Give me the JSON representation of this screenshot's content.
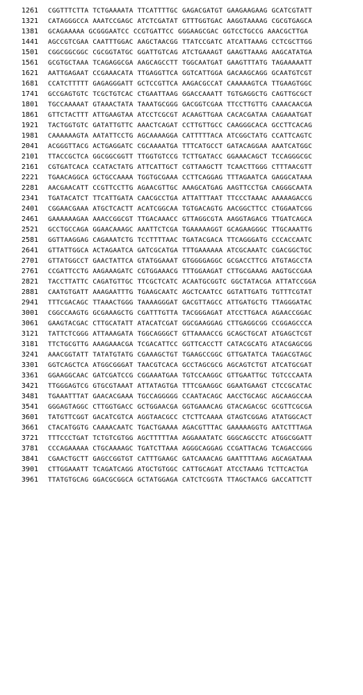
{
  "sequence": {
    "rows": [
      {
        "pos": "1261",
        "blocks": [
          "CGGTTTCTTA",
          "TCTGAAAATA",
          "TTCATTTTGC",
          "GAGACGATGT",
          "GAAGAAGAAG",
          "GCATCGTATT"
        ]
      },
      {
        "pos": "1321",
        "blocks": [
          "CATAGGGCCA",
          "AAATCCGAGC",
          "ATCTCGATAT",
          "GTTTGGTGAC",
          "AAGGTAAAAG",
          "CGCGTGAGCA"
        ]
      },
      {
        "pos": "1381",
        "blocks": [
          "GCAGAAAAA",
          "GCGGGAATCC",
          "CCGTGATTCC",
          "GGGAAGCGAC",
          "GGTCCTGCCG",
          "AAACGCTTGA"
        ]
      },
      {
        "pos": "1441",
        "blocks": [
          "AGCCGTCGAA",
          "CAATTTGGAC",
          "AAGCTAACGG",
          "TTATCCGATC",
          "ATCATTAAAG",
          "CCTCGCTTGG"
        ]
      },
      {
        "pos": "1501",
        "blocks": [
          "CGGCGGCGGC",
          "CGCGGTATGC",
          "GGATTGTCAG",
          "ATCTGAAAGT",
          "GAAGTTAAAG",
          "AAGCATATGA"
        ]
      },
      {
        "pos": "1561",
        "blocks": [
          "GCGTGCTAAA",
          "TCAGAGGCGA",
          "AAGCAGCCTT",
          "TGGCAATGAT",
          "GAAGTTTATG",
          "TAGAAAAATT"
        ]
      },
      {
        "pos": "1621",
        "blocks": [
          "AATTGAGAAT",
          "CCGAAACATA",
          "TTGAGGTTCA",
          "GGTCATTGGA",
          "GACAAGCAGG",
          "GCAATGTCGT"
        ]
      },
      {
        "pos": "1681",
        "blocks": [
          "CCATCTTTTT",
          "GAGAGGGATT",
          "GCTCCGTTCA",
          "AAGACGCCAT",
          "CAAAAAGTCA",
          "TTGAAGTGGC"
        ]
      },
      {
        "pos": "1741",
        "blocks": [
          "GCCGAGTGTC",
          "TCGCTGTCAC",
          "CTGAATTAAG",
          "GGACCAAATT",
          "TGTGAGGCTG",
          "CAGTTGCGCT"
        ]
      },
      {
        "pos": "1801",
        "blocks": [
          "TGCCAAAAAT",
          "GTAAACTATA",
          "TAAATGCGGG",
          "GACGGTCGAA",
          "TTCCTTGTTG",
          "CAAACAACGA"
        ]
      },
      {
        "pos": "1861",
        "blocks": [
          "GTTCTACTTT",
          "ATTGAAGTAA",
          "ATCCTCGCGT",
          "ACAAGTTGAA",
          "CACACGATAA",
          "CAGAAATGAT"
        ]
      },
      {
        "pos": "1921",
        "blocks": [
          "TACTGGTGTC",
          "GATATTGTTC",
          "AAACTCAGAT",
          "CCTTGTTGCC",
          "CAAGGGCACA",
          "GCCTTCACAG"
        ]
      },
      {
        "pos": "1981",
        "blocks": [
          "CAAAAAAGTA",
          "AATATTCCTG",
          "AGCAAAAGGA",
          "CATTTTTACA",
          "ATCGGCTATG",
          "CCATTCAGTC"
        ]
      },
      {
        "pos": "2041",
        "blocks": [
          "ACGGGTTACG",
          "ACTGAGGATC",
          "CGCAAAATGA",
          "TTTCATGCCT",
          "GATACAGGAA",
          "AAATCATGGC"
        ]
      },
      {
        "pos": "2101",
        "blocks": [
          "TTACCGCTCA",
          "GGCGGCGGTT",
          "TTGGTGTCCG",
          "TCTTGATACC",
          "GGAAACAGCT",
          "TCCAGGGCGC"
        ]
      },
      {
        "pos": "2161",
        "blocks": [
          "CGTGATCACA",
          "CCATACTATG",
          "ATTCATTGCT",
          "CGTTAAGCTT",
          "TCAACTTGGG",
          "CTTTAACGTT"
        ]
      },
      {
        "pos": "2221",
        "blocks": [
          "TGAACAGGCA",
          "GCTGCCAAAA",
          "TGGTGCGAAA",
          "CCTTCAGGAG",
          "TTTAGAATCA",
          "GAGGCATAAA"
        ]
      },
      {
        "pos": "2281",
        "blocks": [
          "AACGAACATT",
          "CCGTTCCTTG",
          "AGAACGTTGC",
          "AAAGCATGAG",
          "AAGTTCCTGA",
          "CAGGGCAATA"
        ]
      },
      {
        "pos": "2341",
        "blocks": [
          "TGATACATCT",
          "TTCATTGATA",
          "CAACGCCTGA",
          "ATTATTTAAT",
          "TTCCCTAAAC",
          "AAAAAGACCG"
        ]
      },
      {
        "pos": "2401",
        "blocks": [
          "CGGAACGAAA",
          "ATGCTCACTT",
          "ACATCGGCAA",
          "TGTGACAGTG",
          "AACGGCTTCC",
          "CTGGAATCGG"
        ]
      },
      {
        "pos": "2461",
        "blocks": [
          "GAAAAAAGAA",
          "AAACCGGCGT",
          "TTGACAAACC",
          "GTTAGGCGTA",
          "AAGGTAGACG",
          "TTGATCAGCA"
        ]
      },
      {
        "pos": "2521",
        "blocks": [
          "GCCTGCCAGA",
          "GGAACAAAGC",
          "AAATTCTCGA",
          "TGAAAAAGGT",
          "GCAGAAGGGC",
          "TTGCAAATTG"
        ]
      },
      {
        "pos": "2581",
        "blocks": [
          "GGTTAAGGAG",
          "CAGAAATCTG",
          "TCCTTTTAAC",
          "TGATACGACA",
          "TTCAGGGATG",
          "CCCACCAATC"
        ]
      },
      {
        "pos": "2641",
        "blocks": [
          "GTTATTGGCA",
          "ACTAGAATCA",
          "GATCGCATGA",
          "TTTGAAAAAA",
          "ATCGCAAATC",
          "CGACGGCTGC"
        ]
      },
      {
        "pos": "2701",
        "blocks": [
          "GTTATGGCCT",
          "GAACTATTCA",
          "GTATGGAAAT",
          "GTGGGGAGGC",
          "GCGACCTTCG",
          "ATGTAGCCTA"
        ]
      },
      {
        "pos": "2761",
        "blocks": [
          "CCGATTCCTG",
          "AAGAAAGATC",
          "CGTGGAAACG",
          "TTTGGAAGAT",
          "CTTGCGAAAG",
          "AAGTGCCGAA"
        ]
      },
      {
        "pos": "2821",
        "blocks": [
          "TACCTTATTC",
          "CAGATGTTGC",
          "TTCGCTCATC",
          "ACAATGCGGTC",
          "GGCTATACGA",
          "ATTATCCGGA"
        ]
      },
      {
        "pos": "2881",
        "blocks": [
          "CAATGTGATT",
          "AAAGAATTTG",
          "TGAAGCAATC",
          "AGCTCAATCC",
          "GGTATTGATG",
          "TGTTTCGTAT"
        ]
      },
      {
        "pos": "2941",
        "blocks": [
          "TTTCGACAGC",
          "TTAAACTGGG",
          "TAAAAGGGAT",
          "GACGTTAGCC",
          "ATTGATGCTG",
          "TTAGGGATAC"
        ]
      },
      {
        "pos": "3001",
        "blocks": [
          "CGGCCAAGTG",
          "GCGAAAGCTG",
          "CGATTTGTTA",
          "TACGGGAGAT",
          "ATCCTTGACA",
          "AGAACCGGAC"
        ]
      },
      {
        "pos": "3061",
        "blocks": [
          "GAAGTACGAC",
          "CTTGCATATT",
          "ATACATCGAT",
          "GGCGAAGGAG",
          "CTTGAGGCGG",
          "CCGGAGCCCA"
        ]
      },
      {
        "pos": "3121",
        "blocks": [
          "TATTCTCGGG",
          "ATTAAAGATA",
          "TGGCAGGGCT",
          "GTTAAAACCG",
          "GCAGCTGCAT",
          "ATGAGCTCGT"
        ]
      },
      {
        "pos": "3181",
        "blocks": [
          "TTCTGCGTTG",
          "AAAGAAACGA",
          "TCGACATTCC",
          "GGTTCACCTT",
          "CATACGCATG",
          "ATACGAGCGG"
        ]
      },
      {
        "pos": "3241",
        "blocks": [
          "AAACGGTATT",
          "TATATGTATG",
          "CGAAAGCTGT",
          "TGAAGCCGGC",
          "GTTGATATCA",
          "TAGACGTAGC"
        ]
      },
      {
        "pos": "3301",
        "blocks": [
          "GGTCAGCTCA",
          "ATGGCGGGAT",
          "TAACGTCACA",
          "GCCTAGCGCG",
          "AGCAGTCTGT",
          "ATCATGCGAT"
        ]
      },
      {
        "pos": "3361",
        "blocks": [
          "GGAAGGCAAC",
          "GATCGATCCG",
          "CGGAAATGAA",
          "TGTCCAAGGC",
          "GTTGAATTGC",
          "TGTCCCAATA"
        ]
      },
      {
        "pos": "3421",
        "blocks": [
          "TTGGGAGTCG",
          "GTGCGTAAAT",
          "ATTATAGTGA",
          "TTTCGAAGGC",
          "GGAATGAAGT",
          "CTCCGCATAC"
        ]
      },
      {
        "pos": "3481",
        "blocks": [
          "TGAAATTTAT",
          "GAACACGAAA",
          "TGCCAGGGGG",
          "CCAATACAGC",
          "AACCTGCAGC",
          "AGCAAGCCAA"
        ]
      },
      {
        "pos": "3541",
        "blocks": [
          "GGGAGTAGGC",
          "CTTGGTGACC",
          "GCTGGAACGA",
          "GGTGAAACAG",
          "GTACAGACGC",
          "GCGTTCGCGA"
        ]
      },
      {
        "pos": "3601",
        "blocks": [
          "TATGTTCGGT",
          "GACATCGTCA",
          "AGGTAACGCC",
          "CTCTTCAAAA",
          "GTAGTCGGAG",
          "ATATGGCACT"
        ]
      },
      {
        "pos": "3661",
        "blocks": [
          "CTACATGGTG",
          "CAAAACAATC",
          "TGACTGAAAA",
          "AGACGTTTAC",
          "GAAAAAGGTG",
          "AATCTTTAGA"
        ]
      },
      {
        "pos": "3721",
        "blocks": [
          "TTTCCCTGAT",
          "TCTGTCGTGG",
          "AGCTTTTTAA",
          "AGGAAATATC",
          "GGGCAGCCTC",
          "ATGGCGGATT"
        ]
      },
      {
        "pos": "3781",
        "blocks": [
          "CCCAGAAAAA",
          "CTGCAAAAGC",
          "TGATCTTAAA",
          "AGGGCAGGAG",
          "CCGATTACAG",
          "TCAGACCGGG"
        ]
      },
      {
        "pos": "3841",
        "blocks": [
          "CGAACTGCTT",
          "GAGCCGGTGT",
          "CATTTGAAGC",
          "GATCAAACAG",
          "GAATTTTAAG",
          "AGCAGATAAA"
        ]
      },
      {
        "pos": "3901",
        "blocks": [
          "CTTGGAAATT",
          "TCAGATCAGG",
          "ATGCTGTGGC",
          "CATTGCAGAT",
          "ATCCTAAAG",
          "TCTTCACTGA"
        ]
      },
      {
        "pos": "3961",
        "blocks": [
          "TTATGTGCAG",
          "GGACGCGGCA",
          "GCTATGGAGA",
          "CATCTCGGTA",
          "TTAGCTAACG",
          "GACCATTCTT"
        ]
      }
    ]
  }
}
